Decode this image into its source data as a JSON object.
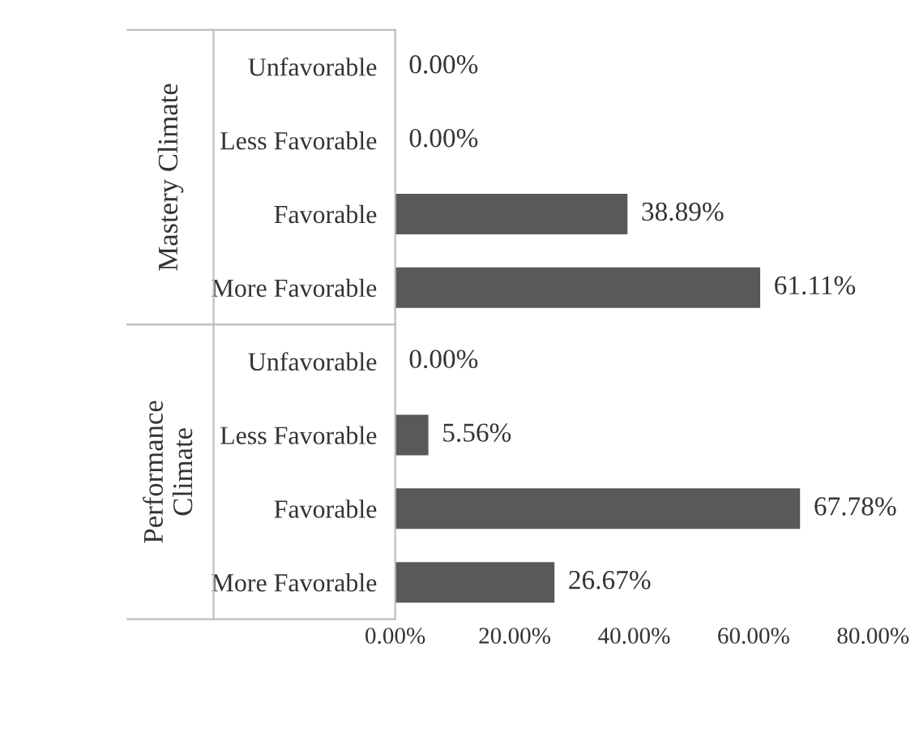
{
  "chart_data": {
    "type": "bar",
    "orientation": "horizontal",
    "categories": [
      "Unfavorable",
      "Less Favorable",
      "Favorable",
      "More Favorable",
      "Unfavorable",
      "Less Favorable",
      "Favorable",
      "More Favorable"
    ],
    "values": [
      0,
      0,
      38.89,
      61.11,
      0,
      5.56,
      67.78,
      26.67
    ],
    "value_labels": [
      "0.00%",
      "0.00%",
      "38.89%",
      "61.11%",
      "0.00%",
      "5.56%",
      "67.78%",
      "26.67%"
    ],
    "color": "#595959",
    "xlim": [
      0,
      80
    ],
    "xticks": [
      {
        "value": 0,
        "label": "0.00%"
      },
      {
        "value": 20,
        "label": "20.00%"
      },
      {
        "value": 40,
        "label": "40.00%"
      },
      {
        "value": 60,
        "label": "60.00%"
      },
      {
        "value": 80,
        "label": "80.00%"
      }
    ],
    "annotations": [
      "Mastery Climate",
      "Performance\nClimate"
    ],
    "grid": false,
    "legend": false
  }
}
